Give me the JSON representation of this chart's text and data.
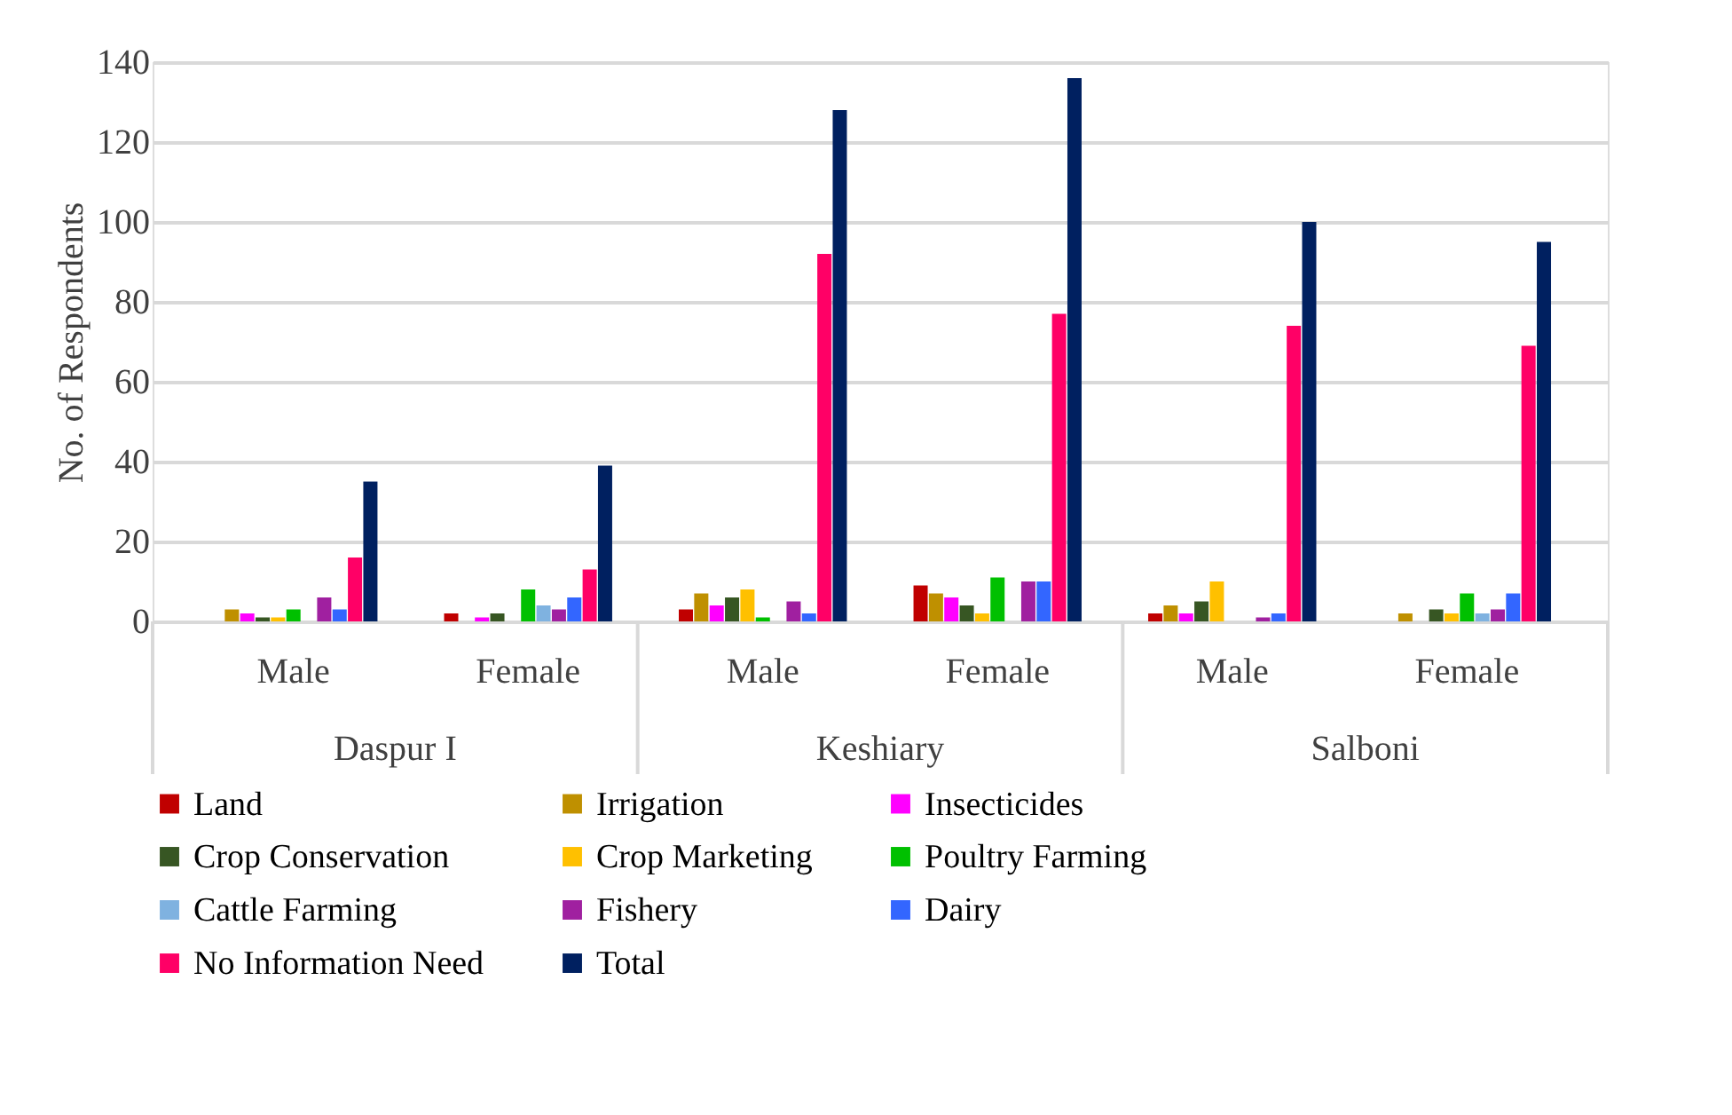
{
  "chart_data": {
    "type": "bar",
    "ylabel": "No. of Respondents",
    "categories": [
      "Male",
      "Female",
      "Male",
      "Female",
      "Male",
      "Female"
    ],
    "annotations": [
      "Daspur I",
      "Keshiary",
      "Salboni"
    ],
    "series": [
      {
        "name": "Land",
        "color": "#c00000",
        "values": [
          0,
          2,
          3,
          9,
          2,
          0
        ]
      },
      {
        "name": "Irrigation",
        "color": "#bf9000",
        "values": [
          3,
          0,
          7,
          7,
          4,
          2
        ]
      },
      {
        "name": "Insecticides",
        "color": "#ff00ff",
        "values": [
          2,
          1,
          4,
          6,
          2,
          0
        ]
      },
      {
        "name": "Crop Conservation",
        "color": "#375623",
        "values": [
          1,
          2,
          6,
          4,
          5,
          3
        ]
      },
      {
        "name": "Crop Marketing",
        "color": "#ffc000",
        "values": [
          1,
          0,
          8,
          2,
          10,
          2
        ]
      },
      {
        "name": "Poultry Farming",
        "color": "#00c000",
        "values": [
          3,
          8,
          1,
          11,
          0,
          7
        ]
      },
      {
        "name": "Cattle Farming",
        "color": "#7fb2e0",
        "values": [
          0,
          4,
          0,
          0,
          0,
          2
        ]
      },
      {
        "name": "Fishery",
        "color": "#a020a0",
        "values": [
          6,
          3,
          5,
          10,
          1,
          3
        ]
      },
      {
        "name": "Dairy",
        "color": "#3366ff",
        "values": [
          3,
          6,
          2,
          10,
          2,
          7
        ]
      },
      {
        "name": "No Information Need",
        "color": "#ff0066",
        "values": [
          16,
          13,
          92,
          77,
          74,
          69
        ]
      },
      {
        "name": "Total",
        "color": "#002060",
        "values": [
          35,
          39,
          128,
          136,
          100,
          95
        ]
      }
    ],
    "ylim": [
      0,
      140
    ],
    "yticks": [
      0,
      20,
      40,
      60,
      80,
      100,
      120,
      140
    ],
    "grid": "y",
    "legend": "bottom"
  }
}
